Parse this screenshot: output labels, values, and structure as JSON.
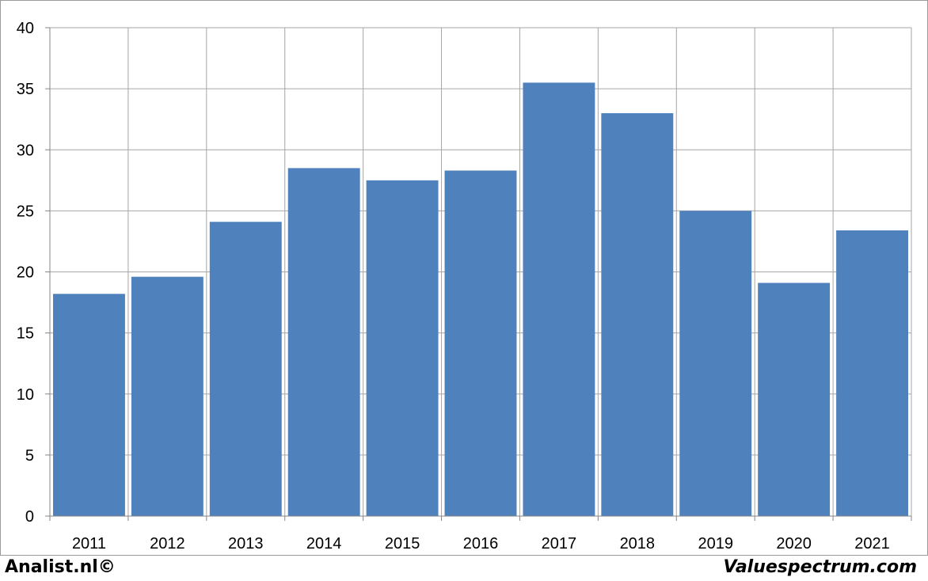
{
  "chart_data": {
    "type": "bar",
    "title": "",
    "xlabel": "",
    "ylabel": "",
    "categories": [
      "2011",
      "2012",
      "2013",
      "2014",
      "2015",
      "2016",
      "2017",
      "2018",
      "2019",
      "2020",
      "2021"
    ],
    "values": [
      18.2,
      19.6,
      24.1,
      28.5,
      27.5,
      28.3,
      35.5,
      33.0,
      25.0,
      19.1,
      23.4
    ],
    "ylim": [
      0,
      40
    ],
    "yticks": [
      "0",
      "5",
      "10",
      "15",
      "20",
      "25",
      "30",
      "35",
      "40"
    ],
    "grid": true,
    "legend": "none",
    "bar_color": "#4f81bd",
    "grid_color": "#a6a6a6"
  },
  "footer": {
    "left_text": "Analist.nl©",
    "right_text": "Valuespectrum.com"
  }
}
